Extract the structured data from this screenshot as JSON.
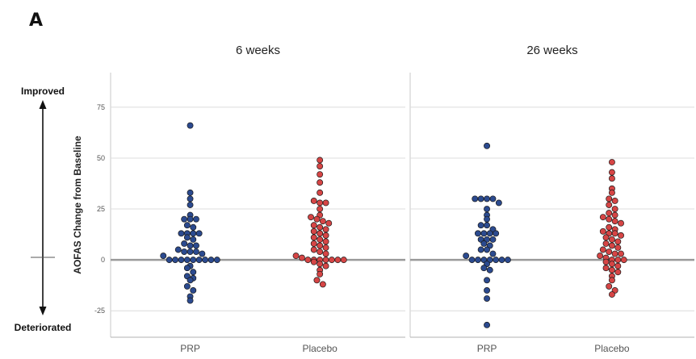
{
  "panel_letter": "A",
  "arrow": {
    "top_label": "Improved",
    "bottom_label": "Deteriorated"
  },
  "colors": {
    "PRP": "#2b4a8f",
    "Placebo": "#d64545",
    "zero_line": "#9a9a9a",
    "grid": "#dcdcdc"
  },
  "chart_data": {
    "type": "scatter",
    "subtype": "dot-strip-plot",
    "ylabel": "AOFAS Change from Baseline",
    "ylim": [
      -38,
      92
    ],
    "yticks": [
      -25,
      0,
      25,
      50,
      75
    ],
    "ytick_labels": [
      "-25",
      "0",
      "25",
      "50",
      "75"
    ],
    "categories": [
      "PRP",
      "Placebo"
    ],
    "grid": true,
    "facets": [
      {
        "title": "6 weeks",
        "series": [
          {
            "name": "PRP",
            "values": [
              66,
              33,
              30,
              27,
              22,
              20,
              20,
              20,
              17,
              16,
              13,
              13,
              13,
              13,
              11,
              10,
              8,
              7,
              7,
              5,
              4,
              4,
              4,
              3,
              2,
              0,
              0,
              0,
              0,
              0,
              0,
              0,
              0,
              0,
              -3,
              -4,
              -6,
              -8,
              -9,
              -10,
              -13,
              -15,
              -18,
              -20
            ]
          },
          {
            "name": "Placebo",
            "values": [
              49,
              46,
              42,
              38,
              33,
              29,
              28,
              28,
              25,
              22,
              21,
              20,
              19,
              18,
              17,
              16,
              15,
              14,
              13,
              12,
              11,
              10,
              9,
              8,
              7,
              6,
              5,
              4,
              3,
              2,
              1,
              0,
              0,
              0,
              0,
              0,
              0,
              0,
              -1,
              -2,
              -3,
              -5,
              -7,
              -10,
              -12
            ]
          }
        ]
      },
      {
        "title": "26 weeks",
        "series": [
          {
            "name": "PRP",
            "values": [
              56,
              30,
              30,
              30,
              30,
              28,
              25,
              22,
              20,
              17,
              17,
              15,
              13,
              13,
              13,
              13,
              10,
              10,
              10,
              8,
              7,
              5,
              5,
              3,
              2,
              0,
              0,
              0,
              0,
              0,
              0,
              0,
              -2,
              -4,
              -5,
              -10,
              -15,
              -19,
              -32
            ]
          },
          {
            "name": "Placebo",
            "values": [
              48,
              43,
              40,
              35,
              33,
              30,
              29,
              27,
              25,
              23,
              22,
              21,
              20,
              19,
              18,
              16,
              15,
              14,
              13,
              13,
              12,
              11,
              10,
              9,
              8,
              7,
              6,
              5,
              4,
              3,
              3,
              2,
              1,
              0,
              0,
              0,
              -1,
              -2,
              -3,
              -4,
              -5,
              -6,
              -8,
              -10,
              -13,
              -15,
              -17
            ]
          }
        ]
      }
    ]
  }
}
